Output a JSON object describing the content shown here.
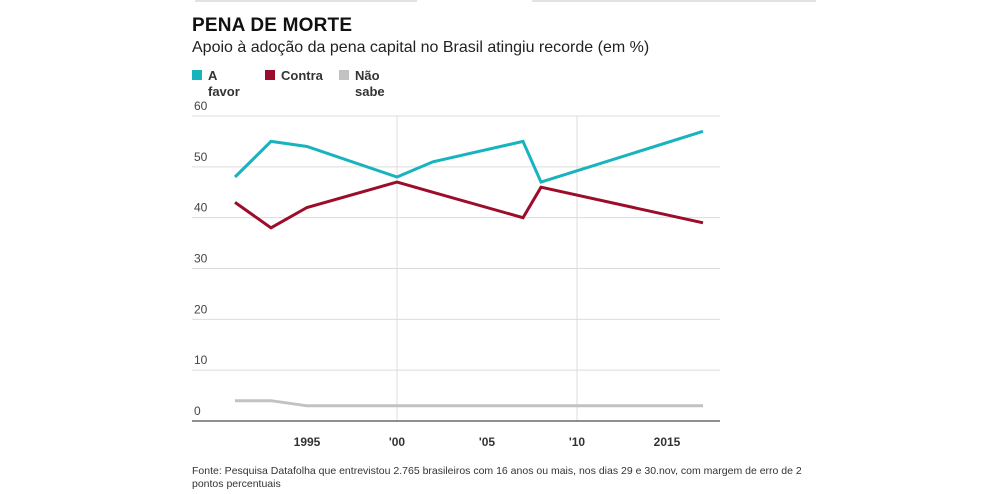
{
  "header": {
    "title": "PENA DE MORTE",
    "subtitle": "Apoio à adoção da pena capital no Brasil atingiu recorde (em %)"
  },
  "legend": [
    {
      "label_line1": "A",
      "label_line2": "favor",
      "color": "#17b3bf"
    },
    {
      "label_line1": "Contra",
      "label_line2": "",
      "color": "#9b0d2a"
    },
    {
      "label_line1": "Não sabe",
      "label_line2": "",
      "color": "#c2c2c2"
    }
  ],
  "source": "Fonte: Pesquisa Datafolha que entrevistou 2.765 brasileiros com 16 anos ou mais, nos dias 29 e 30.nov, com margem de erro de 2 pontos percentuais",
  "chart_data": {
    "type": "line",
    "title": "PENA DE MORTE",
    "subtitle": "Apoio à adoção da pena capital no Brasil atingiu recorde (em %)",
    "xlabel": "",
    "ylabel": "",
    "ylim": [
      0,
      60
    ],
    "xlim": [
      1990,
      2017
    ],
    "yticks": [
      0,
      10,
      20,
      30,
      40,
      50,
      60
    ],
    "xticks": [
      {
        "value": 1995,
        "label": "1995"
      },
      {
        "value": 2000,
        "label": "'00"
      },
      {
        "value": 2005,
        "label": "'05"
      },
      {
        "value": 2010,
        "label": "'10"
      },
      {
        "value": 2015,
        "label": "2015"
      }
    ],
    "grid": true,
    "legend_position": "top-left",
    "x": [
      1991,
      1993,
      1995,
      2000,
      2002,
      2007,
      2008,
      2017
    ],
    "series": [
      {
        "name": "A favor",
        "color": "#17b3bf",
        "values": [
          48,
          55,
          54,
          48,
          51,
          55,
          47,
          57
        ]
      },
      {
        "name": "Contra",
        "color": "#9b0d2a",
        "values": [
          43,
          38,
          42,
          47,
          45,
          40,
          46,
          39
        ]
      },
      {
        "name": "Não sabe",
        "color": "#c2c2c2",
        "values": [
          4,
          4,
          3,
          3,
          3,
          3,
          3,
          3
        ]
      }
    ]
  }
}
